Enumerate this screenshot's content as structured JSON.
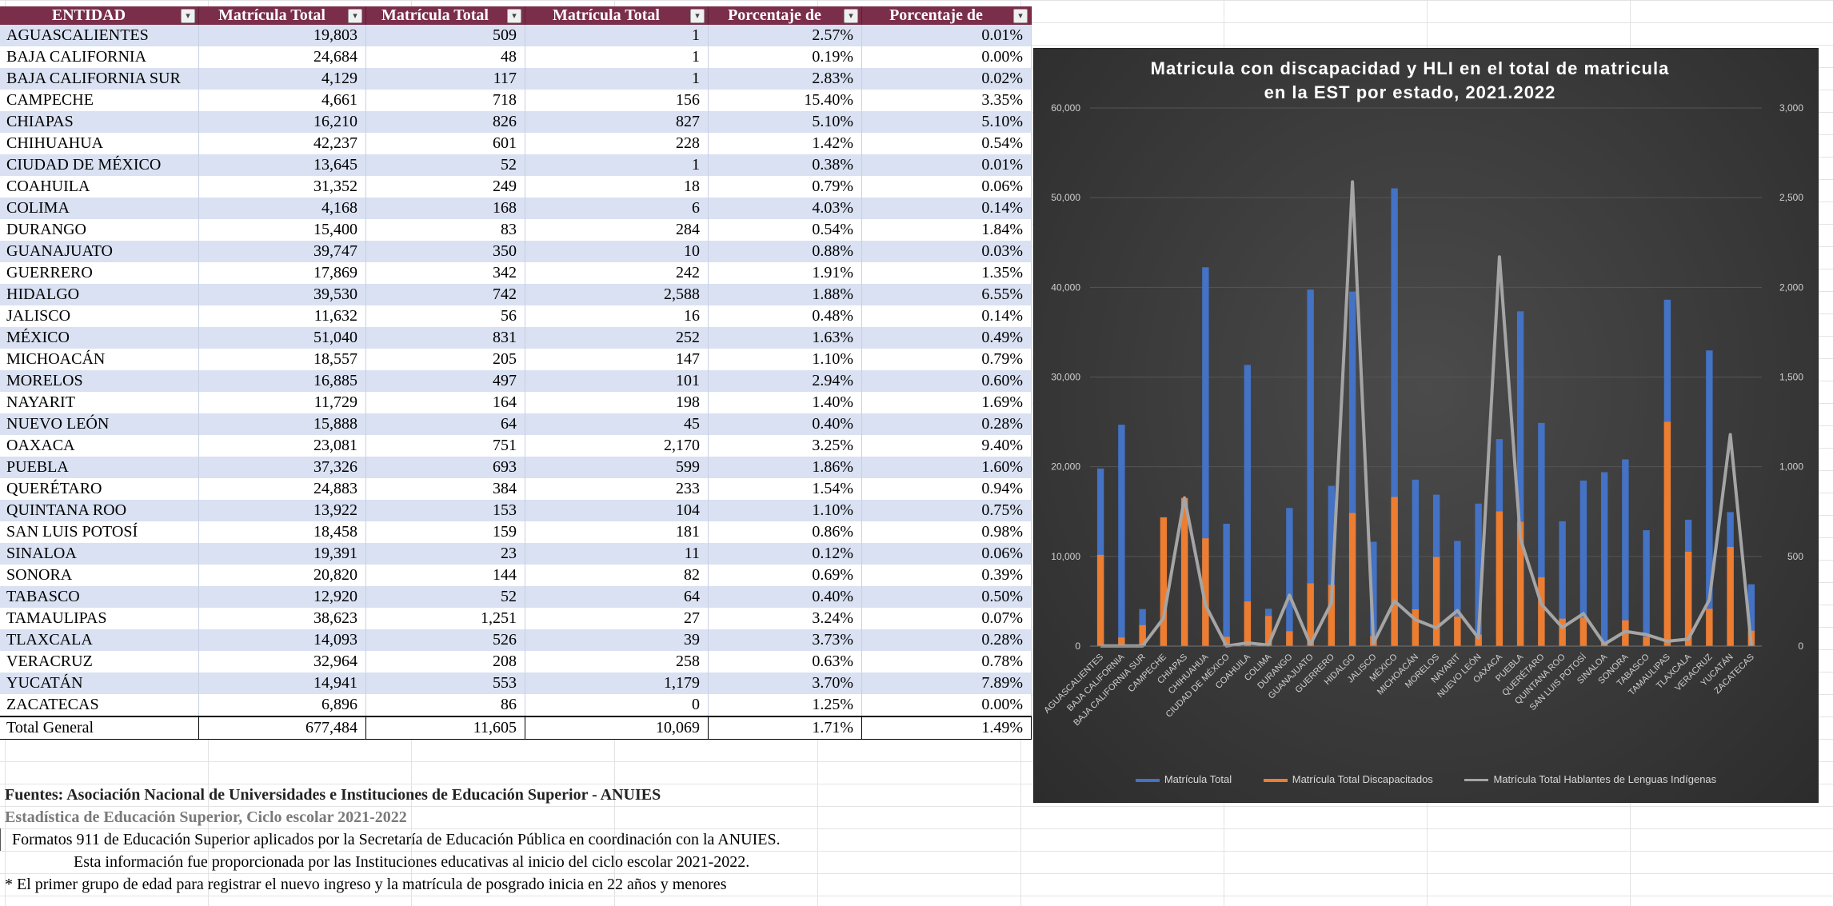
{
  "table": {
    "headers": [
      "ENTIDAD",
      "Matrícula Total",
      "Matrícula Total",
      "Matrícula Total",
      "Porcentaje de",
      "Porcentaje de"
    ],
    "rows": [
      [
        "AGUASCALIENTES",
        "19,803",
        "509",
        "1",
        "2.57%",
        "0.01%"
      ],
      [
        "BAJA CALIFORNIA",
        "24,684",
        "48",
        "1",
        "0.19%",
        "0.00%"
      ],
      [
        "BAJA CALIFORNIA SUR",
        "4,129",
        "117",
        "1",
        "2.83%",
        "0.02%"
      ],
      [
        "CAMPECHE",
        "4,661",
        "718",
        "156",
        "15.40%",
        "3.35%"
      ],
      [
        "CHIAPAS",
        "16,210",
        "826",
        "827",
        "5.10%",
        "5.10%"
      ],
      [
        "CHIHUAHUA",
        "42,237",
        "601",
        "228",
        "1.42%",
        "0.54%"
      ],
      [
        "CIUDAD DE MÉXICO",
        "13,645",
        "52",
        "1",
        "0.38%",
        "0.01%"
      ],
      [
        "COAHUILA",
        "31,352",
        "249",
        "18",
        "0.79%",
        "0.06%"
      ],
      [
        "COLIMA",
        "4,168",
        "168",
        "6",
        "4.03%",
        "0.14%"
      ],
      [
        "DURANGO",
        "15,400",
        "83",
        "284",
        "0.54%",
        "1.84%"
      ],
      [
        "GUANAJUATO",
        "39,747",
        "350",
        "10",
        "0.88%",
        "0.03%"
      ],
      [
        "GUERRERO",
        "17,869",
        "342",
        "242",
        "1.91%",
        "1.35%"
      ],
      [
        "HIDALGO",
        "39,530",
        "742",
        "2,588",
        "1.88%",
        "6.55%"
      ],
      [
        "JALISCO",
        "11,632",
        "56",
        "16",
        "0.48%",
        "0.14%"
      ],
      [
        "MÉXICO",
        "51,040",
        "831",
        "252",
        "1.63%",
        "0.49%"
      ],
      [
        "MICHOACÁN",
        "18,557",
        "205",
        "147",
        "1.10%",
        "0.79%"
      ],
      [
        "MORELOS",
        "16,885",
        "497",
        "101",
        "2.94%",
        "0.60%"
      ],
      [
        "NAYARIT",
        "11,729",
        "164",
        "198",
        "1.40%",
        "1.69%"
      ],
      [
        "NUEVO LEÓN",
        "15,888",
        "64",
        "45",
        "0.40%",
        "0.28%"
      ],
      [
        "OAXACA",
        "23,081",
        "751",
        "2,170",
        "3.25%",
        "9.40%"
      ],
      [
        "PUEBLA",
        "37,326",
        "693",
        "599",
        "1.86%",
        "1.60%"
      ],
      [
        "QUERÉTARO",
        "24,883",
        "384",
        "233",
        "1.54%",
        "0.94%"
      ],
      [
        "QUINTANA ROO",
        "13,922",
        "153",
        "104",
        "1.10%",
        "0.75%"
      ],
      [
        "SAN LUIS POTOSÍ",
        "18,458",
        "159",
        "181",
        "0.86%",
        "0.98%"
      ],
      [
        "SINALOA",
        "19,391",
        "23",
        "11",
        "0.12%",
        "0.06%"
      ],
      [
        "SONORA",
        "20,820",
        "144",
        "82",
        "0.69%",
        "0.39%"
      ],
      [
        "TABASCO",
        "12,920",
        "52",
        "64",
        "0.40%",
        "0.50%"
      ],
      [
        "TAMAULIPAS",
        "38,623",
        "1,251",
        "27",
        "3.24%",
        "0.07%"
      ],
      [
        "TLAXCALA",
        "14,093",
        "526",
        "39",
        "3.73%",
        "0.28%"
      ],
      [
        "VERACRUZ",
        "32,964",
        "208",
        "258",
        "0.63%",
        "0.78%"
      ],
      [
        "YUCATÁN",
        "14,941",
        "553",
        "1,179",
        "3.70%",
        "7.89%"
      ],
      [
        "ZACATECAS",
        "6,896",
        "86",
        "0",
        "1.25%",
        "0.00%"
      ]
    ],
    "total": [
      "Total General",
      "677,484",
      "11,605",
      "10,069",
      "1.71%",
      "1.49%"
    ]
  },
  "notes": {
    "source": "Fuentes: Asociación Nacional de Universidades e Instituciones de Educación Superior - ANUIES",
    "stats": "Estadística de Educación Superior, Ciclo escolar 2021-2022",
    "formats": "Formatos 911 de Educación Superior aplicados por la Secretaría de Educación Pública en coordinación con la ANUIES.",
    "info": "Esta información fue proporcionada por las Instituciones educativas al inicio del ciclo escolar 2021-2022.",
    "footnote": "* El primer grupo de edad para registrar el nuevo ingreso y la matrícula de posgrado inicia en 22 años y menores"
  },
  "colors": {
    "header_bg": "#7a2e4a",
    "band": "#d9e1f2",
    "chart_bg": "#3a3a3a",
    "series_total": "#4472c4",
    "series_disc": "#ed7d31",
    "series_hli": "#a5a5a5"
  },
  "chart_data": {
    "type": "bar",
    "title_lines": [
      "Matricula con discapacidad y HLI en el total de matricula",
      "en la EST por estado, 2021.2022"
    ],
    "categories": [
      "AGUASCALIENTES",
      "BAJA CALIFORNIA",
      "BAJA CALIFORNIA SUR",
      "CAMPECHE",
      "CHIAPAS",
      "CHIHUAHUA",
      "CIUDAD DE MÉXICO",
      "COAHUILA",
      "COLIMA",
      "DURANGO",
      "GUANAJUATO",
      "GUERRERO",
      "HIDALGO",
      "JALISCO",
      "MÉXICO",
      "MICHOACÁN",
      "MORELOS",
      "NAYARIT",
      "NUEVO LEÓN",
      "OAXACA",
      "PUEBLA",
      "QUERÉTARO",
      "QUINTANA ROO",
      "SAN LUIS POTOSÍ",
      "SINALOA",
      "SONORA",
      "TABASCO",
      "TAMAULIPAS",
      "TLAXCALA",
      "VERACRUZ",
      "YUCATÁN",
      "ZACATECAS"
    ],
    "series": [
      {
        "name": "Matrícula Total",
        "axis": "left",
        "kind": "bar",
        "values": [
          19803,
          24684,
          4129,
          4661,
          16210,
          42237,
          13645,
          31352,
          4168,
          15400,
          39747,
          17869,
          39530,
          11632,
          51040,
          18557,
          16885,
          11729,
          15888,
          23081,
          37326,
          24883,
          13922,
          18458,
          19391,
          20820,
          12920,
          38623,
          14093,
          32964,
          14941,
          6896
        ]
      },
      {
        "name": "Matrícula Total Discapacitados",
        "axis": "right",
        "kind": "bar",
        "values": [
          509,
          48,
          117,
          718,
          826,
          601,
          52,
          249,
          168,
          83,
          350,
          342,
          742,
          56,
          831,
          205,
          497,
          164,
          64,
          751,
          693,
          384,
          153,
          159,
          23,
          144,
          52,
          1251,
          526,
          208,
          553,
          86
        ]
      },
      {
        "name": "Matrícula Total Hablantes de Lenguas Indígenas",
        "axis": "right",
        "kind": "line",
        "values": [
          1,
          1,
          1,
          156,
          827,
          228,
          1,
          18,
          6,
          284,
          10,
          242,
          2588,
          16,
          252,
          147,
          101,
          198,
          45,
          2170,
          599,
          233,
          104,
          181,
          11,
          82,
          64,
          27,
          39,
          258,
          1179,
          0
        ]
      }
    ],
    "y_left": {
      "min": 0,
      "max": 60000,
      "ticks": [
        "0",
        "10,000",
        "20,000",
        "30,000",
        "40,000",
        "50,000",
        "60,000"
      ]
    },
    "y_right": {
      "min": 0,
      "max": 3000,
      "ticks": [
        "0",
        "500",
        "1,000",
        "1,500",
        "2,000",
        "2,500",
        "3,000"
      ]
    },
    "grid": true,
    "legend_position": "bottom"
  }
}
